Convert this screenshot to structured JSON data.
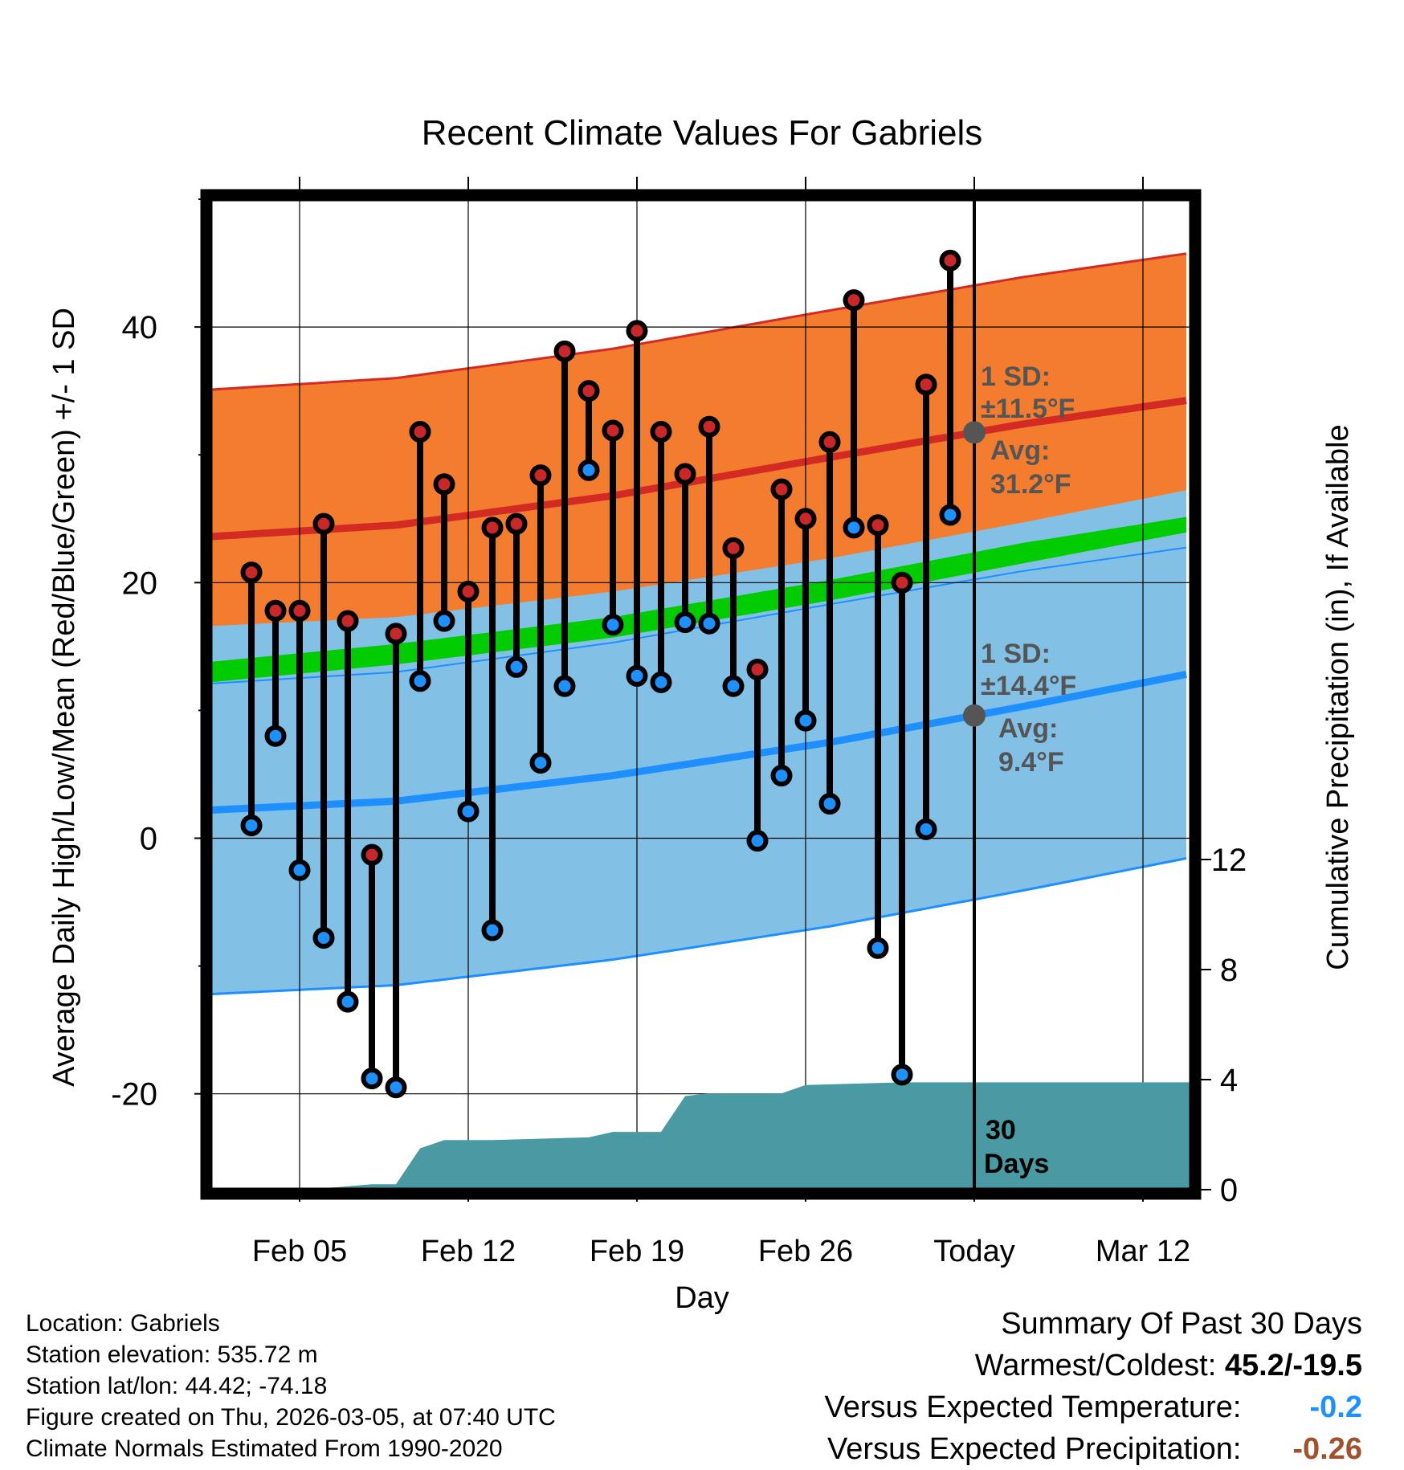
{
  "chart_data": {
    "type": "scatter",
    "title": "Recent Climate Values For Gabriels",
    "xlabel": "Day",
    "ylabel": "Average Daily High/Low/Mean (Red/Blue/Green) +/- 1 SD",
    "y2label": "Cumulative Precipitation (in), If Available",
    "x_ticks": [
      "Feb 05",
      "Feb 12",
      "Feb 19",
      "Feb 26",
      "Today",
      "Mar 12"
    ],
    "y_ticks": [
      "-20",
      "0",
      "20",
      "40"
    ],
    "y2_ticks": [
      "0",
      "4",
      "8",
      "12"
    ],
    "xlim": [
      1.3,
      42
    ],
    "ylim": [
      -27.5,
      50
    ],
    "y2lim": [
      0,
      36
    ],
    "today_day": 33,
    "highs": [
      20.8,
      17.8,
      17.8,
      24.6,
      17,
      -1.3,
      16,
      31.8,
      27.7,
      19.3,
      24.3,
      24.6,
      28.4,
      38.1,
      35,
      31.9,
      39.7,
      31.8,
      28.5,
      32.2,
      22.7,
      13.2,
      27.3,
      25,
      31,
      42.1,
      24.5,
      20,
      35.5,
      45.2
    ],
    "lows": [
      1,
      8,
      -2.5,
      -7.8,
      -12.8,
      -18.8,
      -19.5,
      12.3,
      17,
      2.1,
      -7.2,
      13.4,
      5.9,
      11.9,
      28.8,
      16.7,
      12.7,
      12.2,
      16.9,
      16.8,
      11.9,
      -0.2,
      4.9,
      9.2,
      2.7,
      24.3,
      -8.6,
      -18.5,
      0.7,
      25.3
    ],
    "normal_high": {
      "series": [
        [
          1.3,
          23.6
        ],
        [
          9,
          24.5
        ],
        [
          18,
          26.8
        ],
        [
          27,
          29.8
        ],
        [
          35,
          32.4
        ],
        [
          42,
          34.3
        ]
      ],
      "sd": 11.5
    },
    "normal_low": {
      "series": [
        [
          1.3,
          2.2
        ],
        [
          9,
          2.9
        ],
        [
          18,
          4.9
        ],
        [
          27,
          7.5
        ],
        [
          35,
          10.3
        ],
        [
          42,
          12.9
        ]
      ],
      "sd": 14.4
    },
    "normal_mean_green": {
      "lower": [
        [
          1.3,
          12.2
        ],
        [
          9,
          13.6
        ],
        [
          18,
          15.7
        ],
        [
          27,
          18.6
        ],
        [
          35,
          21.5
        ],
        [
          42,
          24
        ]
      ],
      "upper": [
        [
          1.3,
          13.8
        ],
        [
          9,
          15.2
        ],
        [
          18,
          17.3
        ],
        [
          27,
          20.2
        ],
        [
          35,
          23.1
        ],
        [
          42,
          25.2
        ]
      ]
    },
    "precip_cumulative": [
      [
        1.3,
        0
      ],
      [
        5,
        0
      ],
      [
        6.7,
        0.1
      ],
      [
        8,
        0.2
      ],
      [
        9,
        0.2
      ],
      [
        10,
        1.5
      ],
      [
        11,
        1.8
      ],
      [
        13,
        1.8
      ],
      [
        17,
        1.9
      ],
      [
        18,
        2.1
      ],
      [
        20,
        2.1
      ],
      [
        21,
        3.4
      ],
      [
        22,
        3.5
      ],
      [
        25,
        3.5
      ],
      [
        26,
        3.8
      ],
      [
        30,
        3.9
      ],
      [
        42,
        3.9
      ]
    ],
    "annotations": {
      "high_sd": "1 SD:",
      "high_sd_val": "±11.5°F",
      "high_avg": "Avg:",
      "high_avg_val": "31.2°F",
      "low_sd": "1 SD:",
      "low_sd_val": "±14.4°F",
      "low_avg": "Avg:",
      "low_avg_val": "9.4°F",
      "days": "30",
      "days_unit": "Days"
    },
    "colors": {
      "high_band": "#F37C2E",
      "high_line": "#D42A24",
      "low_band": "#82C0E6",
      "low_line": "#1E8FFF",
      "mean_band": "#00CC00",
      "overlap": "#991717",
      "precip": "#4A9AA4",
      "annot": "#555555",
      "high_marker": "#C8282A",
      "low_marker": "#1E90FF"
    }
  },
  "footer": {
    "location": "Location: Gabriels",
    "elevation": "Station elevation: 535.72 m",
    "latlon": "Station lat/lon: 44.42; -74.18",
    "created": "Figure created on Thu, 2026-03-05, at 07:40 UTC",
    "normals": "Climate Normals Estimated From 1990-2020"
  },
  "summary": {
    "title": "Summary Of Past 30 Days",
    "warm_label": "Warmest/Coldest:",
    "warm_value": "45.2/-19.5",
    "temp_label": "Versus Expected Temperature:",
    "temp_value": "-0.2",
    "temp_color": "#1E90FF",
    "precip_label": "Versus Expected Precipitation:",
    "precip_value": "-0.26",
    "precip_color": "#A0522D"
  }
}
